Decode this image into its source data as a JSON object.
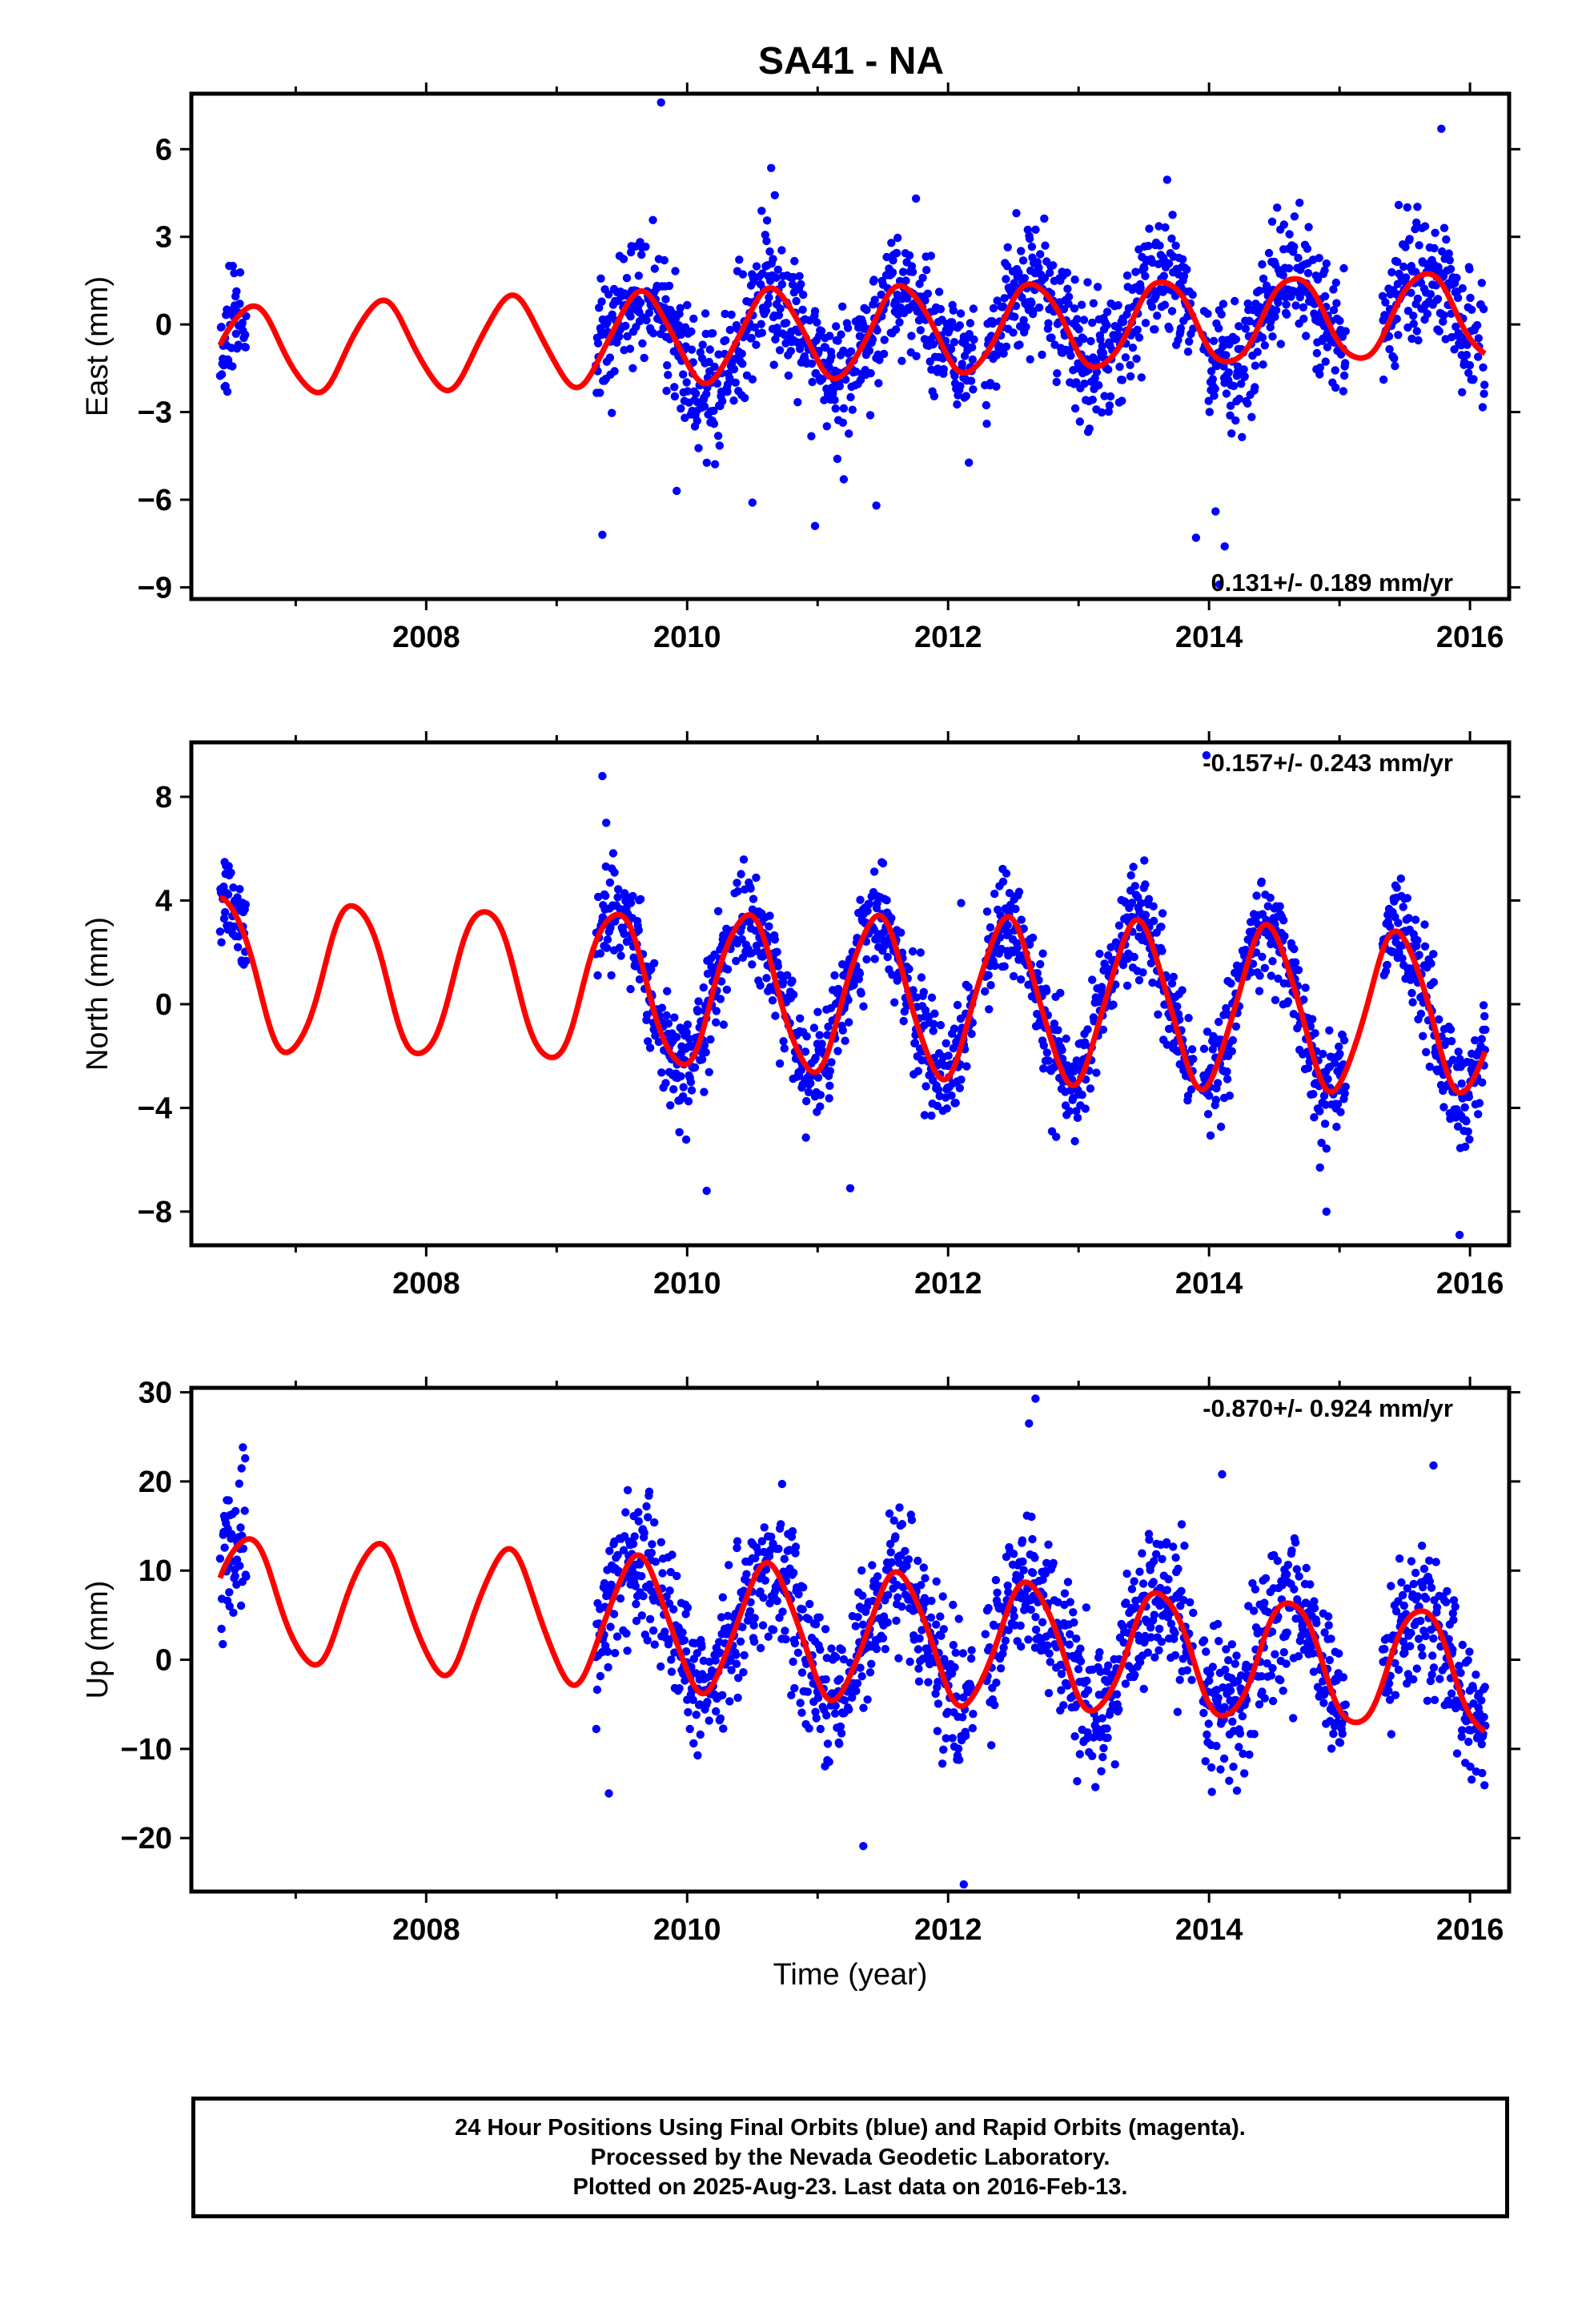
{
  "chart_data": {
    "title": "SA41 - NA",
    "type": "scatter",
    "xlabel": "Time (year)",
    "xlim": [
      2006.2,
      2016.3
    ],
    "xticks": [
      2008,
      2010,
      2012,
      2014,
      2016
    ],
    "panels": [
      {
        "id": "east",
        "type": "scatter",
        "ylabel": "East (mm)",
        "ylim": [
          -9.4,
          7.9
        ],
        "yticks": [
          6,
          3,
          0,
          -3,
          -6,
          -9
        ],
        "ytick_labels": [
          "6",
          "3",
          "0",
          "−3",
          "−6",
          "−9"
        ],
        "rate_label": "0.131+/- 0.189 mm/yr",
        "rate_position": "bottom-right",
        "model": {
          "intercept": -0.3,
          "rate": 0.131,
          "amp": 1.5,
          "peak": 0.65
        },
        "segments": [
          [
            2006.42,
            2006.62
          ],
          [
            2009.3,
            2016.12
          ]
        ],
        "gaps": [
          [
            2012.2,
            2012.28
          ],
          [
            2013.88,
            2013.95
          ],
          [
            2015.05,
            2015.33
          ]
        ],
        "noise": 1.1,
        "seed": 11,
        "outliers": [
          [
            2009.8,
            7.6
          ],
          [
            2009.35,
            -7.2
          ],
          [
            2009.92,
            -5.7
          ],
          [
            2010.5,
            -6.1
          ],
          [
            2010.98,
            -6.9
          ],
          [
            2011.2,
            -5.3
          ],
          [
            2011.45,
            -6.2
          ],
          [
            2014.08,
            -8.9
          ],
          [
            2014.12,
            -7.6
          ],
          [
            2014.05,
            -6.4
          ],
          [
            2015.78,
            6.7
          ],
          [
            2013.9,
            -7.3
          ]
        ]
      },
      {
        "id": "north",
        "type": "scatter",
        "ylabel": "North (mm)",
        "ylim": [
          -9.3,
          10.1
        ],
        "yticks": [
          8,
          4,
          0,
          -4,
          -8
        ],
        "ytick_labels": [
          "8",
          "4",
          "0",
          "−4",
          "−8"
        ],
        "rate_label": "-0.157+/- 0.243 mm/yr",
        "rate_position": "top-right",
        "model": {
          "intercept": 0.4,
          "rate": -0.157,
          "amp": 3.0,
          "peak": 0.45
        },
        "segments": [
          [
            2006.42,
            2006.62
          ],
          [
            2009.3,
            2016.12
          ]
        ],
        "gaps": [
          [
            2012.2,
            2012.28
          ],
          [
            2013.88,
            2013.95
          ],
          [
            2015.05,
            2015.33
          ]
        ],
        "noise": 1.0,
        "seed": 23,
        "outliers": [
          [
            2009.35,
            8.8
          ],
          [
            2009.38,
            7.0
          ],
          [
            2010.15,
            -7.2
          ],
          [
            2011.25,
            -7.1
          ],
          [
            2013.98,
            9.6
          ],
          [
            2014.85,
            -6.3
          ],
          [
            2014.9,
            -8.0
          ],
          [
            2015.92,
            -8.9
          ],
          [
            2012.1,
            3.9
          ]
        ]
      },
      {
        "id": "up",
        "type": "scatter",
        "ylabel": "Up (mm)",
        "ylim": [
          -26,
          30.5
        ],
        "yticks": [
          30,
          20,
          10,
          0,
          -10,
          -20
        ],
        "ytick_labels": [
          "30",
          "20",
          "10",
          "0",
          "−10",
          "−20"
        ],
        "rate_label": "-0.870+/- 0.924 mm/yr",
        "rate_position": "top-right",
        "model": {
          "intercept": 3.0,
          "rate": -0.87,
          "amp": 7.0,
          "peak": 0.62
        },
        "segments": [
          [
            2006.42,
            2006.62
          ],
          [
            2009.3,
            2016.12
          ]
        ],
        "gaps": [
          [
            2012.2,
            2012.28
          ],
          [
            2013.88,
            2013.95
          ],
          [
            2015.05,
            2015.33
          ]
        ],
        "noise": 4.0,
        "seed": 37,
        "outliers": [
          [
            2012.67,
            29.3
          ],
          [
            2012.62,
            26.5
          ],
          [
            2014.1,
            20.8
          ],
          [
            2015.72,
            21.8
          ],
          [
            2012.12,
            -25.2
          ],
          [
            2011.35,
            -20.9
          ],
          [
            2009.4,
            -15.0
          ]
        ]
      }
    ],
    "colors": {
      "final_orbits": "#0000ff",
      "model_fit": "#ff0000",
      "axes": "#000000"
    }
  },
  "footer": {
    "line1": "24 Hour Positions Using Final Orbits (blue) and Rapid Orbits (magenta).",
    "line2": "Processed by the Nevada Geodetic Laboratory.",
    "line3": "Plotted on 2025-Aug-23. Last data on 2016-Feb-13."
  }
}
